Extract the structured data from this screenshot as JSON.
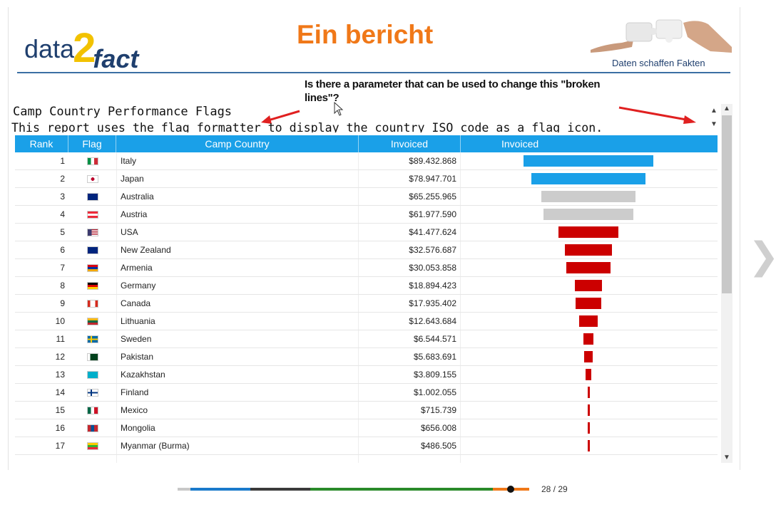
{
  "header": {
    "logo": {
      "part1": "data",
      "part2": "2",
      "part3": "fact"
    },
    "title": "Ein bericht",
    "tagline": "Daten schaffen Fakten"
  },
  "annotation": {
    "question": "Is there a parameter that can be used to change this \"broken lines\"?"
  },
  "report": {
    "title": "Camp Country Performance Flags",
    "subtitle": "This report uses the flag formatter to display the country ISO code as a flag icon."
  },
  "table": {
    "columns": [
      "Rank",
      "Flag",
      "Camp Country",
      "Invoiced",
      "Invoiced"
    ],
    "rows": [
      {
        "rank": "1",
        "flag": "italy-flag-icon",
        "country": "Italy",
        "invoiced": "$89.432.868",
        "value": 89432868,
        "color": "#1aa0e8"
      },
      {
        "rank": "2",
        "flag": "japan-flag-icon",
        "country": "Japan",
        "invoiced": "$78.947.701",
        "value": 78947701,
        "color": "#1aa0e8"
      },
      {
        "rank": "3",
        "flag": "australia-flag-icon",
        "country": "Australia",
        "invoiced": "$65.255.965",
        "value": 65255965,
        "color": "#cccccc"
      },
      {
        "rank": "4",
        "flag": "austria-flag-icon",
        "country": "Austria",
        "invoiced": "$61.977.590",
        "value": 61977590,
        "color": "#cccccc"
      },
      {
        "rank": "5",
        "flag": "usa-flag-icon",
        "country": "USA",
        "invoiced": "$41.477.624",
        "value": 41477624,
        "color": "#cc0000"
      },
      {
        "rank": "6",
        "flag": "new-zealand-flag-icon",
        "country": "New Zealand",
        "invoiced": "$32.576.687",
        "value": 32576687,
        "color": "#cc0000"
      },
      {
        "rank": "7",
        "flag": "armenia-flag-icon",
        "country": "Armenia",
        "invoiced": "$30.053.858",
        "value": 30053858,
        "color": "#cc0000"
      },
      {
        "rank": "8",
        "flag": "germany-flag-icon",
        "country": "Germany",
        "invoiced": "$18.894.423",
        "value": 18894423,
        "color": "#cc0000"
      },
      {
        "rank": "9",
        "flag": "canada-flag-icon",
        "country": "Canada",
        "invoiced": "$17.935.402",
        "value": 17935402,
        "color": "#cc0000"
      },
      {
        "rank": "10",
        "flag": "lithuania-flag-icon",
        "country": "Lithuania",
        "invoiced": "$12.643.684",
        "value": 12643684,
        "color": "#cc0000"
      },
      {
        "rank": "11",
        "flag": "sweden-flag-icon",
        "country": "Sweden",
        "invoiced": "$6.544.571",
        "value": 6544571,
        "color": "#cc0000"
      },
      {
        "rank": "12",
        "flag": "pakistan-flag-icon",
        "country": "Pakistan",
        "invoiced": "$5.683.691",
        "value": 5683691,
        "color": "#cc0000"
      },
      {
        "rank": "13",
        "flag": "kazakhstan-flag-icon",
        "country": "Kazakhstan",
        "invoiced": "$3.809.155",
        "value": 3809155,
        "color": "#cc0000"
      },
      {
        "rank": "14",
        "flag": "finland-flag-icon",
        "country": "Finland",
        "invoiced": "$1.002.055",
        "value": 1002055,
        "color": "#cc0000"
      },
      {
        "rank": "15",
        "flag": "mexico-flag-icon",
        "country": "Mexico",
        "invoiced": "$715.739",
        "value": 715739,
        "color": "#cc0000"
      },
      {
        "rank": "16",
        "flag": "mongolia-flag-icon",
        "country": "Mongolia",
        "invoiced": "$656.008",
        "value": 656008,
        "color": "#cc0000"
      },
      {
        "rank": "17",
        "flag": "myanmar-flag-icon",
        "country": "Myanmar (Burma)",
        "invoiced": "$486.505",
        "value": 486505,
        "color": "#cc0000"
      }
    ]
  },
  "pager": {
    "counter": "28 / 29",
    "progress_fraction": 0.965
  },
  "colors": {
    "accent": "#f07818",
    "header_blue": "#1aa0e8",
    "brand_navy": "#1f3f6e"
  }
}
